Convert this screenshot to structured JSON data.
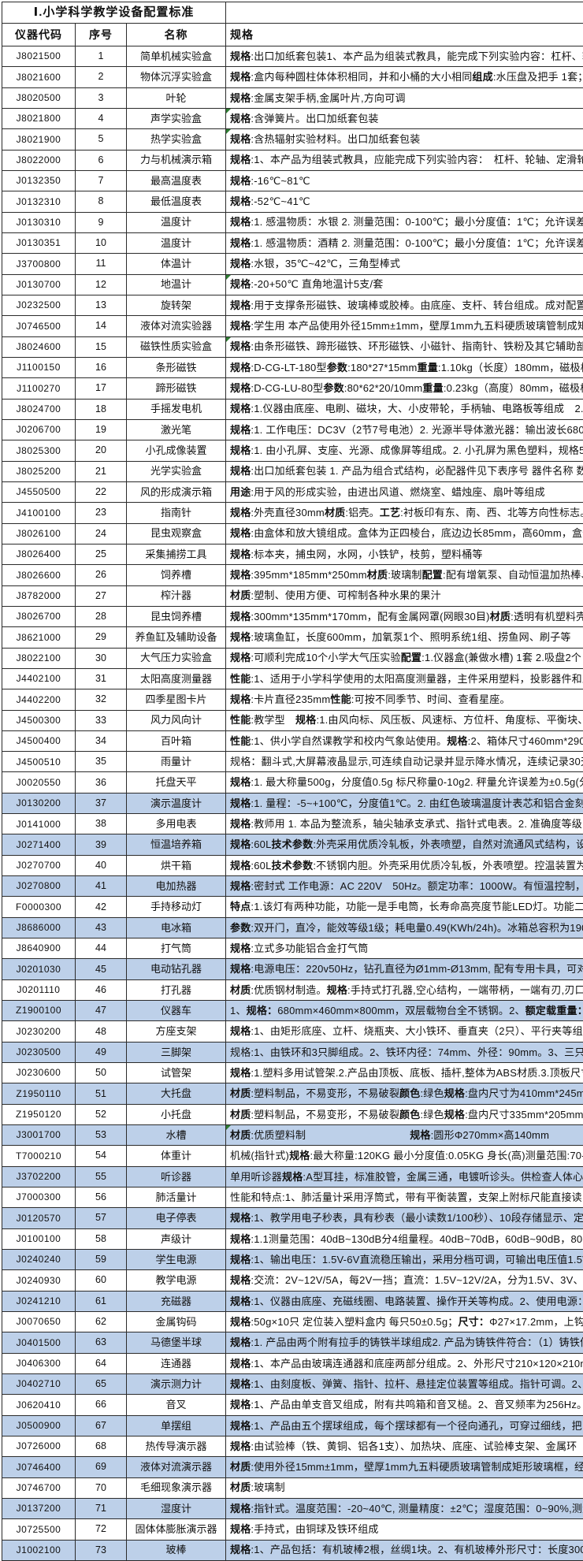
{
  "title": "Ⅰ.小学科学教学设备配置标准",
  "columns": [
    "仪器代码",
    "序号",
    "名称",
    "规格"
  ],
  "colors": {
    "highlight": "#bdd0e9",
    "border": "#2b2b2b",
    "mark_green": "#2e7d32"
  },
  "rows": [
    {
      "code": "J8021500",
      "no": "1",
      "name": "简单机械实验盒",
      "spec": "**规格**:出口加纸套包装1、本产品为组装式教具，能完成下列实验内容：杠杆、轮轴、定滑",
      "highlight": false,
      "mark": false
    },
    {
      "code": "J8021600",
      "no": "2",
      "name": "物体沉浮实验盒",
      "spec": "**规格**:盒内每种圆柱体体积相同，并和小桶的大小相同 **组成**:水压盘及把手 1套；径",
      "highlight": false,
      "mark": false
    },
    {
      "code": "J8020500",
      "no": "3",
      "name": "叶轮",
      "spec": "**规格**:金属支架手柄,金属叶片,方向可调",
      "highlight": false,
      "mark": false
    },
    {
      "code": "J8021800",
      "no": "4",
      "name": "声学实验盒",
      "spec": "**规格**:含弹簧片。出口加纸套包装",
      "highlight": false,
      "mark": true
    },
    {
      "code": "J8021900",
      "no": "5",
      "name": "热学实验盒",
      "spec": "**规格**:含热辐射实验材料。出口加纸套包装",
      "highlight": false,
      "mark": true
    },
    {
      "code": "J8022000",
      "no": "6",
      "name": "力与机械演示箱",
      "spec": "**规格**:1、本产品为组装式教具，应能完成下列实验内容：　杠杆、轮轴、定滑轮、动",
      "highlight": false,
      "mark": false
    },
    {
      "code": "J0132350",
      "no": "7",
      "name": "最高温度表",
      "spec": "**规格**:-16℃~81℃",
      "highlight": false,
      "mark": false
    },
    {
      "code": "J0132310",
      "no": "8",
      "name": "最低温度表",
      "spec": "**规格**:-52℃~41℃",
      "highlight": false,
      "mark": false
    },
    {
      "code": "J0130310",
      "no": "9",
      "name": "温度计",
      "spec": "**规格**:1. 感温物质：水银 2. 测量范围：0-100℃；最小分度值：1℃；允许误差±",
      "highlight": false,
      "mark": false
    },
    {
      "code": "J0130351",
      "no": "10",
      "name": "温度计",
      "spec": "**规格**:1. 感温物质：酒精 2. 测量范围：0-100℃；最小分度值：1℃；允许误差±",
      "highlight": false,
      "mark": false
    },
    {
      "code": "J3700800",
      "no": "11",
      "name": "体温计",
      "spec": "**规格**:水银，35℃~42℃，三角型棒式",
      "highlight": false,
      "mark": false
    },
    {
      "code": "J0130700",
      "no": "12",
      "name": "地温计",
      "spec": "**规格**:-20+50℃ 直角地温计5支/套",
      "highlight": false,
      "mark": true
    },
    {
      "code": "J0232500",
      "no": "13",
      "name": "旋转架",
      "spec": "**规格**:用于支撑条形磁铁、玻璃棒或胶棒。由底座、支杆、转台组成。成对配置。放",
      "highlight": false,
      "mark": false
    },
    {
      "code": "J0746500",
      "no": "14",
      "name": "液体对流实验器",
      "spec": "**规格**:学生用 本产品使用外径15mm±1mm，壁厚1mm九五料硬质玻璃管制成矩形玻璃",
      "highlight": false,
      "mark": false
    },
    {
      "code": "J8024600",
      "no": "15",
      "name": "磁铁性质实验盒",
      "spec": "**规格**:由条形磁铁、蹄形磁铁、环形磁铁、小磁针、指南针、铁粉及其它辅助部件组",
      "highlight": false,
      "mark": true
    },
    {
      "code": "J1100150",
      "no": "16",
      "name": "条形磁铁",
      "spec": "**规格**:D-CG-LT-180型 **参数**:180*27*15mm **重量**:1.10kg（长度）180mm，磁极横截面",
      "highlight": false,
      "mark": false
    },
    {
      "code": "J1100270",
      "no": "17",
      "name": "蹄形磁铁",
      "spec": "**规格**:D-CG-LU-80型**参数**:80*62*20/10mm **重量**:0.23kg（高度）80mm，磁极横截面",
      "highlight": false,
      "mark": false
    },
    {
      "code": "J8024700",
      "no": "18",
      "name": "手摇发电机",
      "spec": "**规格**:1.仪器由底座、电刷、磁块，大、小皮带轮，手柄轴、电路板等组成　2.输出",
      "highlight": false,
      "mark": false
    },
    {
      "code": "J0206700",
      "no": "19",
      "name": "激光笔",
      "spec": "**规格**:1. 工作电压：DC3V（2节7号电池）2. 光源半导体激光器：输出波长680nm（",
      "highlight": false,
      "mark": false
    },
    {
      "code": "J8025300",
      "no": "20",
      "name": "小孔成像装置",
      "spec": "**规格**:1. 由小孔屏、支座、光源、成像屏等组成。2. 小孔屏为黑色塑料，规格50mm",
      "highlight": false,
      "mark": false
    },
    {
      "code": "J8025200",
      "no": "21",
      "name": "光学实验盒",
      "spec": "**规格**:出口加纸套包装 1. 产品为组合式结构，必配器件见下表序号 器件名称 数量",
      "highlight": false,
      "mark": false
    },
    {
      "code": "J4550500",
      "no": "22",
      "name": "风的形成演示箱",
      "spec": "**用途**:用于风的形成实验，由进出风道、燃烧室、蜡烛座、扇叶等组成",
      "highlight": false,
      "mark": false
    },
    {
      "code": "J4100100",
      "no": "23",
      "name": "指南针",
      "spec": "**规格**:外壳直径30mm **材质**:铝壳。**工艺**:衬板印有东、南、西、北等方向性标志。小",
      "highlight": false,
      "mark": false
    },
    {
      "code": "J8026100",
      "no": "24",
      "name": "昆虫观察盒",
      "spec": "**规格**:由盒体和放大镜组成。盒体为正四棱台，底边边长85mm，高60mm，盒体四壁均",
      "highlight": false,
      "mark": false
    },
    {
      "code": "J8026400",
      "no": "25",
      "name": "采集捕捞工具",
      "spec": "**规格**:标本夹，捕虫网，水网，小铁铲，枝剪，塑料桶等",
      "highlight": false,
      "mark": false
    },
    {
      "code": "J8026600",
      "no": "26",
      "name": "饲养槽",
      "spec": "**规格**:395mm*185mm*250mm **材质**:玻璃制 **配置**:配有增氧泵、自动恒温加热棒、温度",
      "highlight": false,
      "mark": false
    },
    {
      "code": "J8782000",
      "no": "27",
      "name": "榨汁器",
      "spec": "**材质**:塑制、使用方便、可榨制各种水果的果汁",
      "highlight": false,
      "mark": false
    },
    {
      "code": "J8026700",
      "no": "28",
      "name": "昆虫饲养槽",
      "spec": "**规格**:300mm*135mm*170mm，配有金属网罩(网眼30目) **材质**:透明有机塑料壳体 **用途**",
      "highlight": false,
      "mark": false
    },
    {
      "code": "J8621000",
      "no": "29",
      "name": "养鱼缸及辅助设备",
      "spec": "**规格**:玻璃鱼缸，长度600mm，加氧泵1个、照明系统1组、捞鱼网、刷子等",
      "highlight": false,
      "mark": false
    },
    {
      "code": "J8022100",
      "no": "30",
      "name": "大气压力实验盒",
      "spec": "**规格**:可顺利完成10个小学大气压实验 **配置**:1.仪器盒(兼做水槽) 1套 2.吸盘2个 3",
      "highlight": false,
      "mark": false
    },
    {
      "code": "J4402100",
      "no": "31",
      "name": "太阳高度测量器",
      "spec": "**性能**:1、适用于小学科学使用的太阳高度测量器，主件采用塑料，投影器件和立杆",
      "highlight": false,
      "mark": false
    },
    {
      "code": "J4402200",
      "no": "32",
      "name": "四季星图卡片",
      "spec": "**规格**:卡片直径235mm **性能**:可按不同季节、时间、查看星座。",
      "highlight": false,
      "mark": false
    },
    {
      "code": "J4500300",
      "no": "33",
      "name": "风力风向计",
      "spec": "**性能**:教学型　**规格**:1.由风向标、风压板、风速标、方位杆、角度标、平衡块、平",
      "highlight": false,
      "mark": false
    },
    {
      "code": "J4500400",
      "no": "34",
      "name": "百叶箱",
      "spec": "**性能**:1、供小学自然课教学和校内气象站使用。**规格**:2、箱体尺寸460mm*290mm*53",
      "highlight": false,
      "mark": false
    },
    {
      "code": "J4500510",
      "no": "35",
      "name": "雨量计",
      "spec": "规格：翻斗式,大屏幕液晶显示,可连续自动记录并显示降水情况，连续记录30天,范",
      "highlight": false,
      "mark": false
    },
    {
      "code": "J0020550",
      "no": "36",
      "name": "托盘天平",
      "spec": "**规格**:1. 最大称量500g，分度值0.5g 标尺称量0-10g2. 秤量允许误差为±0.5g(分",
      "highlight": false,
      "mark": false
    },
    {
      "code": "J0130200",
      "no": "37",
      "name": "演示温度计",
      "spec": "**规格**:1. 量程：-5~+100℃，分度值1℃。2. 由红色玻璃温度计表芯和铝合金刻度",
      "highlight": true,
      "mark": false
    },
    {
      "code": "J0141000",
      "no": "38",
      "name": "多用电表",
      "spec": "**规格**:教师用 1. 本品为整流系，轴尖轴承支承式、指针式电表。2. 准确度等级：",
      "highlight": false,
      "mark": false
    },
    {
      "code": "J0271400",
      "no": "39",
      "name": "恒温培养箱",
      "spec": "**规格**:60L **技术参数**:外壳采用优质冷轧板，外表喷塑，自然对流通风式结构，设有",
      "highlight": true,
      "mark": false
    },
    {
      "code": "J0270700",
      "no": "40",
      "name": "烘干箱",
      "spec": "**规格**:60L **技术参数**:不锈钢内胆。外壳采用优质冷轧板，外表喷塑。控温装置为P",
      "highlight": false,
      "mark": false
    },
    {
      "code": "J0270800",
      "no": "41",
      "name": "电加热器",
      "spec": "**规格**:密封式 工作电源：AC 220V　50Hz。额定功率：1000W。有恒温控制，炉面",
      "highlight": true,
      "mark": false
    },
    {
      "code": "F0000300",
      "no": "42",
      "name": "手持移动灯",
      "spec": "**特点**:1.该灯有两种功能，功能一是手电筒，长寿命高亮度节能LED灯。功能二是台",
      "highlight": false,
      "mark": false
    },
    {
      "code": "J8686000",
      "no": "43",
      "name": "电冰箱",
      "spec": "**参数**:双开门，直冷，能效等级1级；耗电量0.49(KWh/24h)。冰箱总容积为190升，",
      "highlight": true,
      "mark": false
    },
    {
      "code": "J8640900",
      "no": "44",
      "name": "打气筒",
      "spec": "**规格**:立式多功能铝合金打气筒",
      "highlight": false,
      "mark": false
    },
    {
      "code": "J0201030",
      "no": "45",
      "name": "电动钻孔器",
      "spec": "**规格**:电源电压：220v50Hz，钻孔直径为Ø1mm-Ø13mm, 配有专用卡具，可对不同规格",
      "highlight": true,
      "mark": false
    },
    {
      "code": "J0201110",
      "no": "46",
      "name": "打孔器",
      "spec": "**材质**:优质钢材制造。**规格**:手持式打孔器,空心结构，一端带柄，一端有刃,刃口平",
      "highlight": false,
      "mark": false
    },
    {
      "code": "Z1900100",
      "no": "47",
      "name": "仪器车",
      "spec": "1、**规格：**680mm×460mm×800mm，双层载物台全不锈钢。2、**额定载重量：**2×50k",
      "highlight": true,
      "mark": false
    },
    {
      "code": "J0230200",
      "no": "48",
      "name": "方座支架",
      "spec": "**规格**:1、由矩形底座、立杆、烧瓶夹、大小铁环、垂直夹（2只）、平行夹等组成。",
      "highlight": false,
      "mark": false
    },
    {
      "code": "J0230500",
      "no": "49",
      "name": "三脚架",
      "spec": "规格:1、由铁环和3只脚组成。2、铁环内径：74mm、外径：90mm。3、三只脚与铁环",
      "highlight": true,
      "mark": false
    },
    {
      "code": "J0230600",
      "no": "50",
      "name": "试管架",
      "spec": "**规格**:1.塑料多用试管架.2.产品由顶板、底板、插杆,整体为ABS材质.3.顶板尺寸2",
      "highlight": false,
      "mark": false
    },
    {
      "code": "Z1950110",
      "no": "51",
      "name": "大托盘",
      "spec": "**材质**:塑料制品，不易变形，不易破裂 **颜色**:绿色 **规格**:盘内尺寸为410mm*245mm*",
      "highlight": true,
      "mark": false
    },
    {
      "code": "Z1950120",
      "no": "52",
      "name": "小托盘",
      "spec": "**材质**:塑料制品，不易变形，不易破裂 **颜色**:绿色 **规格**:盘内尺寸335mm*205mm*55m",
      "highlight": false,
      "mark": false
    },
    {
      "code": "J3001700",
      "no": "53",
      "name": "水槽",
      "spec": "**材质**:优质塑料制　　　　　　　　　　**规格**:圆形Φ270mm×高140mm",
      "highlight": true,
      "mark": true
    },
    {
      "code": "T7000210",
      "no": "54",
      "name": "体重计",
      "spec": "机械(指针式) **规格**:最大称量:120KG 最小分度值:0.05KG 身长(高)测量范围:70-19",
      "highlight": false,
      "mark": false
    },
    {
      "code": "J3702200",
      "no": "55",
      "name": "听诊器",
      "spec": "单用听诊器 **规格**:A型耳挂，标准胶管，金属三通，电镀听诊头。供检查人体心肺器",
      "highlight": true,
      "mark": false
    },
    {
      "code": "J7000300",
      "no": "56",
      "name": "肺活量计",
      "spec": "性能和特点:1、肺活量计采用浮筒式，带有平衡装置，支架上附标尺能直接读出肺活",
      "highlight": false,
      "mark": false
    },
    {
      "code": "J0120570",
      "no": "57",
      "name": "电子停表",
      "spec": "**规格**:1、教学用电子秒表，具有秒表（最小读数1/100秒）、10段存储显示、定时器",
      "highlight": true,
      "mark": false
    },
    {
      "code": "J0100100",
      "no": "58",
      "name": "声级计",
      "spec": "**规格**:1.1测量范围：40dB~130dB分4组量程。40dB~70dB，60dB~90dB，80dB~110",
      "highlight": false,
      "mark": false
    },
    {
      "code": "J0240240",
      "no": "59",
      "name": "学生电源",
      "spec": "**规格**:1、输出电压：1.5V-6V直流稳压输出，采用分档可调，可输出电压值1.5V、",
      "highlight": true,
      "mark": false
    },
    {
      "code": "J0240930",
      "no": "60",
      "name": "教学电源",
      "spec": "**规格**:交流：2V~12V/5A，每2V一挡；直流：1.5V~12V/2A，分为1.5V、3V、4.5V、",
      "highlight": false,
      "mark": false
    },
    {
      "code": "J0241210",
      "no": "61",
      "name": "充磁器",
      "spec": "**规格**:1、仪器由底座、充磁线圈、电路装置、操作开关等构成。2、使用电源：交流",
      "highlight": true,
      "mark": false
    },
    {
      "code": "J0070650",
      "no": "62",
      "name": "金属钩码",
      "spec": "**规格**:50g×10只 定位装入塑料盒内 每只50±0.5g；**尺寸：**Φ27×17.2mm，上钩高",
      "highlight": false,
      "mark": false
    },
    {
      "code": "J0401500",
      "no": "63",
      "name": "马德堡半球",
      "spec": "**规格**:1. 产品由两个附有拉手的铸铁半球组成2. 产品为铸铁件符合：（1）铸铁件",
      "highlight": true,
      "mark": false
    },
    {
      "code": "J0406300",
      "no": "64",
      "name": "连通器",
      "spec": "**规格**:1、本产品由玻璃连通器和底座两部分组成。2、外形尺寸210×120×210mm。2",
      "highlight": false,
      "mark": false
    },
    {
      "code": "J0402710",
      "no": "65",
      "name": "演示测力计",
      "spec": "**规格**:1、由刻度板、弹簧、指针、拉杆、悬挂定位装置等组成。指针可调。2、外形",
      "highlight": true,
      "mark": false
    },
    {
      "code": "J0620410",
      "no": "66",
      "name": "音叉",
      "spec": "**规格**:1、产品由单支音叉组成，附有共鸣箱和音叉槌。2、音叉频率为256Hz。3、音",
      "highlight": false,
      "mark": false
    },
    {
      "code": "J0500900",
      "no": "67",
      "name": "单摆组",
      "spec": "**规格**:1、产品由五个摆球组成，每个摆球都有一个径向通孔，可穿过细线，把它悬",
      "highlight": true,
      "mark": false
    },
    {
      "code": "J0726000",
      "no": "68",
      "name": "热传导演示器",
      "spec": "**规格**:由试验棒（铁、黄铜、铝各1支）、加热块、底座、试验棒支架、金属环（3个",
      "highlight": false,
      "mark": false
    },
    {
      "code": "J0746400",
      "no": "69",
      "name": "液体对流演示器",
      "spec": "**材质**:使用外径15mm±1mm，壁厚1mm九五料硬质玻璃管制成矩形玻璃框，经退火处理",
      "highlight": true,
      "mark": false
    },
    {
      "code": "J0746700",
      "no": "70",
      "name": "毛细现象演示器",
      "spec": "**材质**:玻璃制",
      "highlight": false,
      "mark": false
    },
    {
      "code": "J0137200",
      "no": "71",
      "name": "湿度计",
      "spec": "**规格**:指针式。温度范围：-20~40℃, 测量精度：±2℃；湿度范围：0~90%,测量精",
      "highlight": true,
      "mark": false
    },
    {
      "code": "J0725500",
      "no": "72",
      "name": "固体体膨胀演示器",
      "spec": "**规格**:手持式，由铜球及铁环组成",
      "highlight": false,
      "mark": false
    },
    {
      "code": "J1002100",
      "no": "73",
      "name": "玻棒",
      "spec": "**规格**:1、产品包括：有机玻棒2根，丝绸1块。2、有机玻棒外形尺寸：长度300mm。",
      "highlight": true,
      "mark": false
    }
  ]
}
